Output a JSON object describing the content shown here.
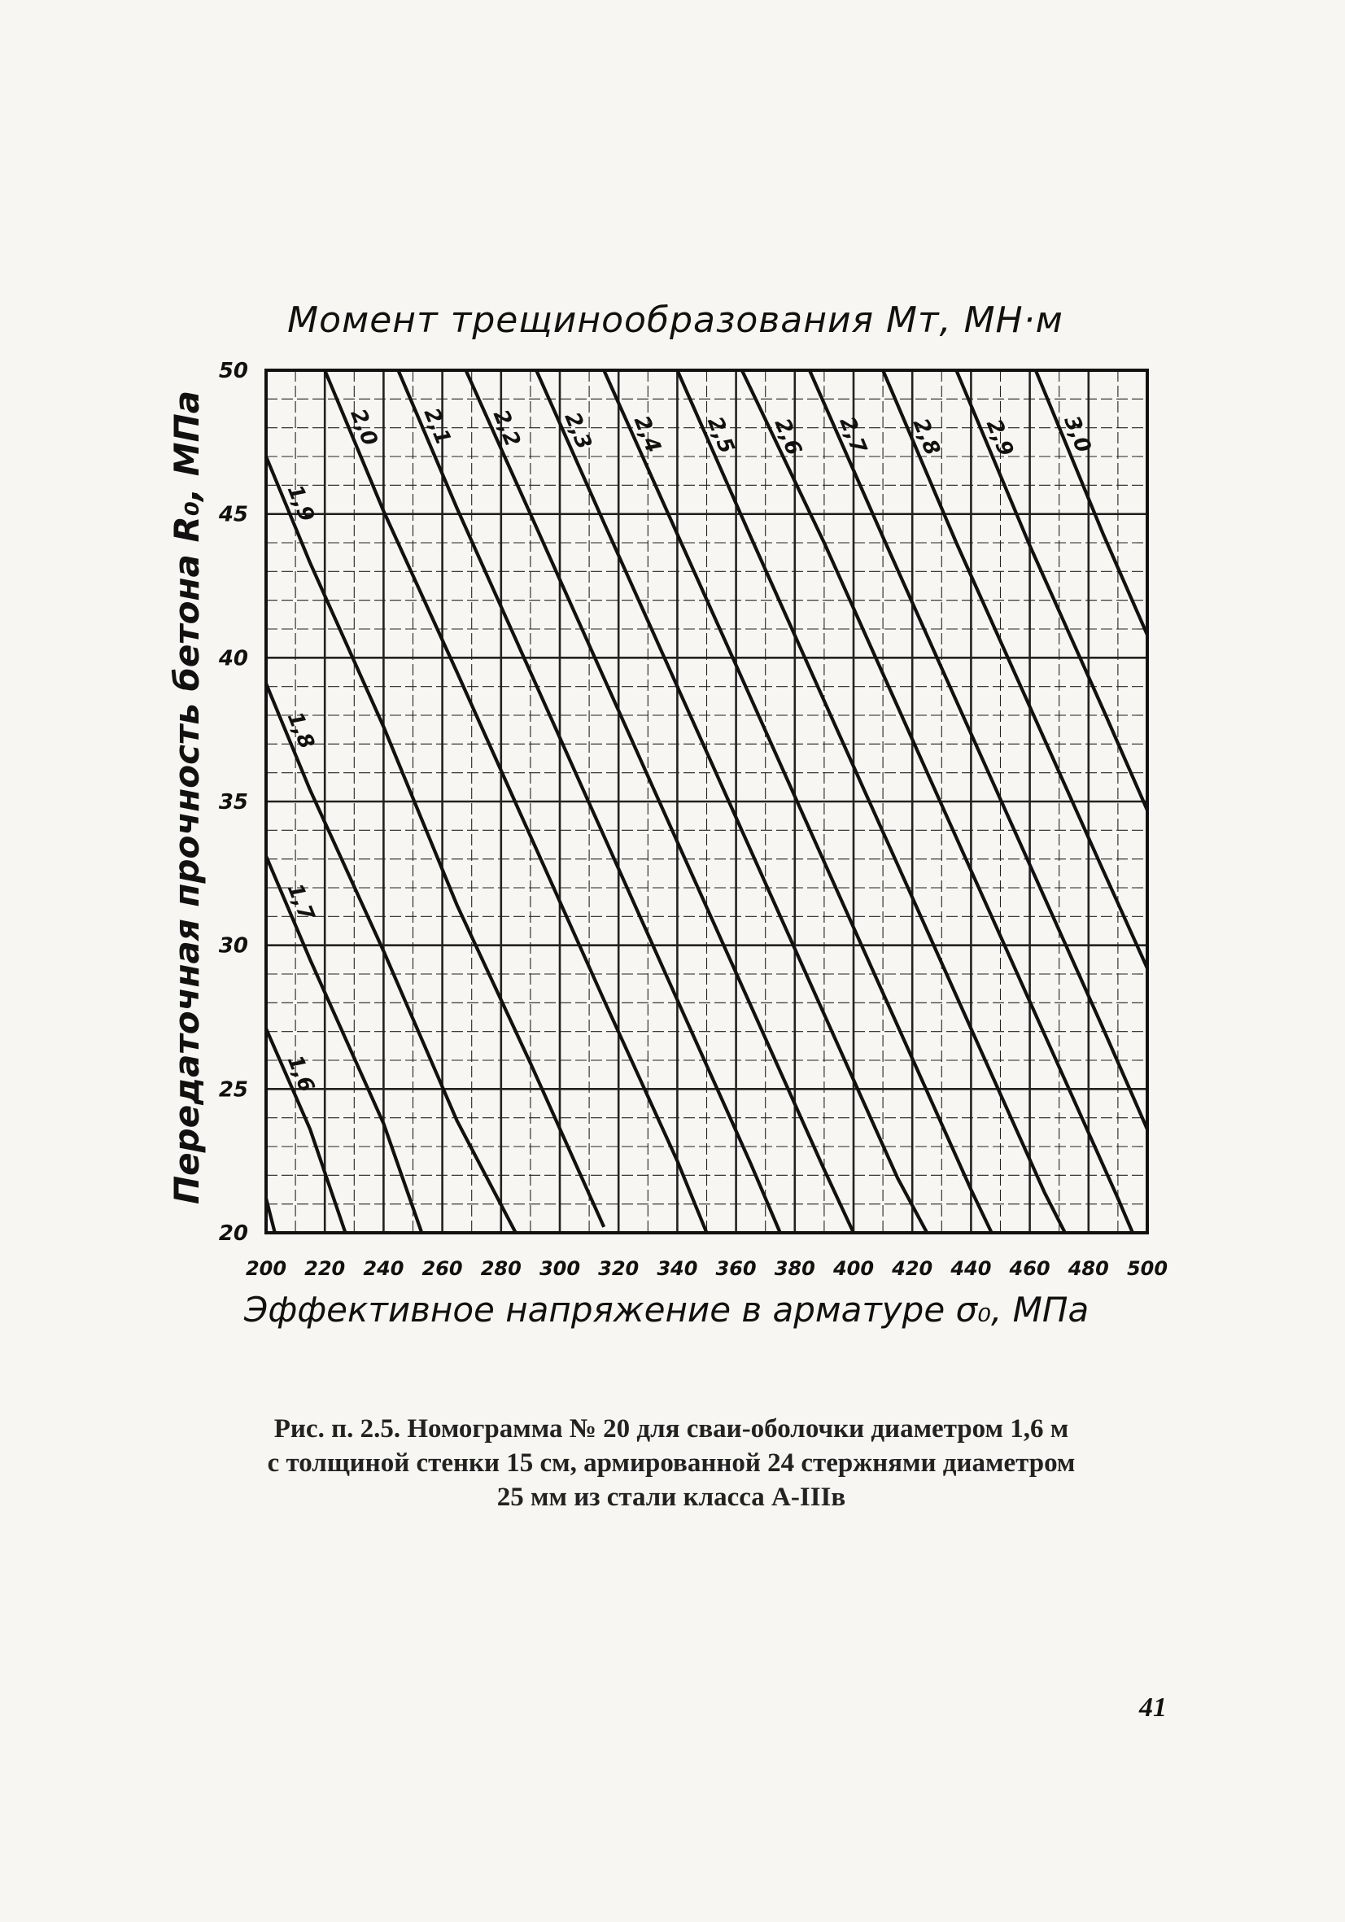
{
  "chart_data": {
    "type": "line",
    "title": "Момент трещинообразования Мт, МН·м",
    "xlabel": "Эффективное напряжение в арматуре σ₀, МПа",
    "ylabel": "Передаточная прочность бетона R₀, МПа",
    "xlim": [
      200,
      500
    ],
    "ylim": [
      20,
      50
    ],
    "x_ticks": [
      "200",
      "220",
      "240",
      "260",
      "280",
      "300",
      "320",
      "340",
      "360",
      "380",
      "400",
      "420",
      "440",
      "460",
      "480",
      "500"
    ],
    "y_ticks": [
      "20",
      "25",
      "30",
      "35",
      "40",
      "45",
      "50"
    ],
    "grid": true,
    "series": [
      {
        "name": "1,6",
        "points": [
          [
            200,
            27.1
          ],
          [
            215,
            23.6
          ],
          [
            227,
            20.0
          ]
        ]
      },
      {
        "name": "1,6",
        "points": [
          [
            200,
            21.2
          ],
          [
            203,
            20.0
          ]
        ]
      },
      {
        "name": "1,7",
        "points": [
          [
            200,
            33.1
          ],
          [
            215,
            29.5
          ],
          [
            240,
            23.8
          ],
          [
            253,
            20.0
          ]
        ]
      },
      {
        "name": "1,8",
        "points": [
          [
            200,
            39.1
          ],
          [
            215,
            35.4
          ],
          [
            240,
            29.8
          ],
          [
            265,
            23.9
          ],
          [
            285,
            20.0
          ]
        ]
      },
      {
        "name": "1,9",
        "points": [
          [
            200,
            47.0
          ],
          [
            215,
            43.3
          ],
          [
            240,
            37.6
          ],
          [
            265,
            31.4
          ],
          [
            290,
            25.9
          ],
          [
            315,
            20.2
          ]
        ]
      },
      {
        "name": "2,0",
        "points": [
          [
            220,
            50.0
          ],
          [
            240,
            45.1
          ],
          [
            265,
            39.5
          ],
          [
            290,
            33.8
          ],
          [
            315,
            28.1
          ],
          [
            340,
            22.5
          ],
          [
            350,
            20.0
          ]
        ]
      },
      {
        "name": "2,1",
        "points": [
          [
            245,
            50.0
          ],
          [
            265,
            45.2
          ],
          [
            290,
            39.5
          ],
          [
            315,
            33.8
          ],
          [
            340,
            28.1
          ],
          [
            365,
            22.4
          ],
          [
            375,
            20.0
          ]
        ]
      },
      {
        "name": "2,2",
        "points": [
          [
            268,
            50.0
          ],
          [
            290,
            45.0
          ],
          [
            315,
            39.3
          ],
          [
            340,
            33.6
          ],
          [
            365,
            27.9
          ],
          [
            390,
            22.2
          ],
          [
            400,
            20.0
          ]
        ]
      },
      {
        "name": "2,3",
        "points": [
          [
            292,
            50.0
          ],
          [
            315,
            44.7
          ],
          [
            340,
            39.0
          ],
          [
            365,
            33.3
          ],
          [
            390,
            27.6
          ],
          [
            415,
            21.9
          ],
          [
            425,
            20.0
          ]
        ]
      },
      {
        "name": "2,4",
        "points": [
          [
            315,
            50.0
          ],
          [
            340,
            44.3
          ],
          [
            365,
            38.6
          ],
          [
            390,
            32.9
          ],
          [
            415,
            27.2
          ],
          [
            440,
            21.5
          ],
          [
            447,
            20.0
          ]
        ]
      },
      {
        "name": "2,5",
        "points": [
          [
            340,
            50.0
          ],
          [
            365,
            44.2
          ],
          [
            390,
            38.5
          ],
          [
            415,
            32.8
          ],
          [
            440,
            27.1
          ],
          [
            465,
            21.4
          ],
          [
            472,
            20.0
          ]
        ]
      },
      {
        "name": "2,6",
        "points": [
          [
            362,
            50.0
          ],
          [
            390,
            44.0
          ],
          [
            415,
            38.3
          ],
          [
            440,
            32.6
          ],
          [
            465,
            26.9
          ],
          [
            490,
            21.2
          ],
          [
            495,
            20.0
          ]
        ]
      },
      {
        "name": "2,7",
        "points": [
          [
            385,
            50.0
          ],
          [
            410,
            44.2
          ],
          [
            435,
            38.5
          ],
          [
            460,
            32.8
          ],
          [
            485,
            27.1
          ],
          [
            500,
            23.6
          ]
        ]
      },
      {
        "name": "2,8",
        "points": [
          [
            410,
            50.0
          ],
          [
            435,
            44.0
          ],
          [
            460,
            38.3
          ],
          [
            485,
            32.6
          ],
          [
            500,
            29.2
          ]
        ]
      },
      {
        "name": "2,9",
        "points": [
          [
            435,
            50.0
          ],
          [
            460,
            43.9
          ],
          [
            485,
            38.2
          ],
          [
            500,
            34.7
          ]
        ]
      },
      {
        "name": "3,0",
        "points": [
          [
            462,
            50.0
          ],
          [
            485,
            44.3
          ],
          [
            500,
            40.8
          ]
        ]
      }
    ]
  },
  "caption": {
    "line1": "Рис. п. 2.5. Номограмма № 20 для сваи-оболочки диаметром 1,6 м",
    "line2": "с толщиной стенки 15 см, армированной 24 стержнями диаметром",
    "line3": "25 мм из стали класса А-IIIв"
  },
  "page_number": "41"
}
